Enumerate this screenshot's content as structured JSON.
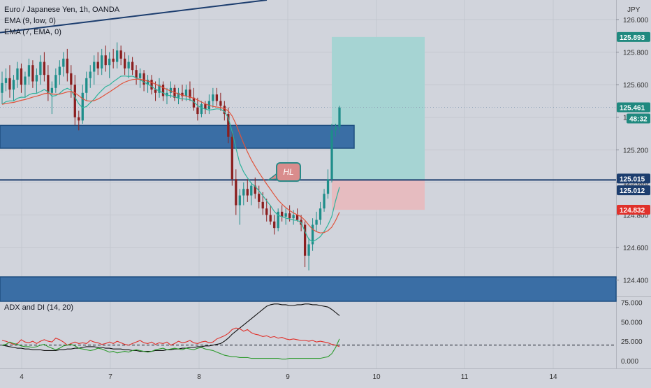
{
  "legend": {
    "symbol": "Euro / Japanese Yen, 1h, OANDA",
    "ema1": "EMA (9, low, 0)",
    "ema2": "EMA (7, EMA, 0)"
  },
  "adx_legend": "ADX and DI (14, 20)",
  "annotation": "HL",
  "colors": {
    "background": "#d1d4dc",
    "zone": "#3a6ea5",
    "zone_border": "#1e4e80",
    "bull": "#1e8e8a",
    "bear": "#8b1f1f",
    "ema_fast": "#2fb39c",
    "ema_slow": "#e0543c",
    "target": "#a6d4d3",
    "stop": "#e6bcc0",
    "adx": "#111111",
    "di_plus": "#2e9b2e",
    "di_minus": "#e0312b"
  },
  "chart_data": [
    {
      "type": "candlestick",
      "title": "Euro / Japanese Yen, 1h, OANDA",
      "currency": "JPY",
      "ylim": [
        124.3,
        126.12
      ],
      "y_ticks": [
        "126.000",
        "125.800",
        "125.600",
        "125.400",
        "125.200",
        "125.000",
        "124.800",
        "124.600",
        "124.400"
      ],
      "x_ticks": [
        "4",
        "7",
        "8",
        "9",
        "10",
        "11",
        "14"
      ],
      "price_labels": [
        {
          "label": "125.893",
          "value": 125.893,
          "kind": "target"
        },
        {
          "label": "125.461",
          "value": 125.461,
          "kind": "last"
        },
        {
          "label": "48:32",
          "value": 125.36,
          "kind": "countdown"
        },
        {
          "label": "125.015",
          "value": 125.015,
          "kind": "level"
        },
        {
          "label": "125.012",
          "value": 125.012,
          "kind": "entry"
        },
        {
          "label": "124.832",
          "value": 124.832,
          "kind": "stop"
        }
      ],
      "horizontal_line": 125.015,
      "zones": [
        {
          "high": 125.35,
          "low": 125.21
        },
        {
          "high": 124.42,
          "low": 124.27
        }
      ],
      "position": {
        "entry": 125.012,
        "target": 125.893,
        "stop": 124.832
      },
      "trendline": {
        "from": 125.92,
        "to": 126.12
      },
      "series": [
        {
          "name": "EMA (9, low, 0)"
        },
        {
          "name": "EMA (7, EMA, 0)"
        }
      ],
      "candles": [
        [
          125.55,
          125.68,
          125.48,
          125.61
        ],
        [
          125.61,
          125.7,
          125.56,
          125.64
        ],
        [
          125.64,
          125.72,
          125.52,
          125.57
        ],
        [
          125.57,
          125.66,
          125.5,
          125.63
        ],
        [
          125.63,
          125.74,
          125.58,
          125.7
        ],
        [
          125.7,
          125.73,
          125.55,
          125.6
        ],
        [
          125.6,
          125.68,
          125.52,
          125.65
        ],
        [
          125.65,
          125.76,
          125.6,
          125.72
        ],
        [
          125.72,
          125.75,
          125.58,
          125.62
        ],
        [
          125.62,
          125.7,
          125.55,
          125.66
        ],
        [
          125.66,
          125.78,
          125.6,
          125.74
        ],
        [
          125.74,
          125.8,
          125.62,
          125.66
        ],
        [
          125.66,
          125.72,
          125.5,
          125.55
        ],
        [
          125.55,
          125.62,
          125.42,
          125.58
        ],
        [
          125.58,
          125.7,
          125.55,
          125.66
        ],
        [
          125.66,
          125.75,
          125.6,
          125.71
        ],
        [
          125.71,
          125.8,
          125.65,
          125.76
        ],
        [
          125.76,
          125.82,
          125.62,
          125.67
        ],
        [
          125.67,
          125.72,
          125.52,
          125.6
        ],
        [
          125.6,
          125.66,
          125.35,
          125.4
        ],
        [
          125.4,
          125.44,
          125.32,
          125.38
        ],
        [
          125.38,
          125.6,
          125.36,
          125.55
        ],
        [
          125.55,
          125.68,
          125.5,
          125.64
        ],
        [
          125.64,
          125.72,
          125.58,
          125.68
        ],
        [
          125.68,
          125.78,
          125.6,
          125.74
        ],
        [
          125.74,
          125.8,
          125.66,
          125.7
        ],
        [
          125.7,
          125.82,
          125.66,
          125.78
        ],
        [
          125.78,
          125.84,
          125.68,
          125.72
        ],
        [
          125.72,
          125.8,
          125.64,
          125.76
        ],
        [
          125.76,
          125.82,
          125.7,
          125.74
        ],
        [
          125.74,
          125.86,
          125.7,
          125.81
        ],
        [
          125.81,
          125.84,
          125.72,
          125.76
        ],
        [
          125.76,
          125.8,
          125.66,
          125.7
        ],
        [
          125.7,
          125.78,
          125.64,
          125.74
        ],
        [
          125.74,
          125.77,
          125.66,
          125.69
        ],
        [
          125.69,
          125.72,
          125.6,
          125.64
        ],
        [
          125.64,
          125.7,
          125.58,
          125.67
        ],
        [
          125.67,
          125.69,
          125.56,
          125.6
        ],
        [
          125.6,
          125.66,
          125.55,
          125.63
        ],
        [
          125.63,
          125.66,
          125.54,
          125.57
        ],
        [
          125.57,
          125.62,
          125.5,
          125.55
        ],
        [
          125.55,
          125.64,
          125.52,
          125.6
        ],
        [
          125.6,
          125.62,
          125.5,
          125.53
        ],
        [
          125.53,
          125.58,
          125.48,
          125.55
        ],
        [
          125.55,
          125.62,
          125.52,
          125.58
        ],
        [
          125.58,
          125.6,
          125.5,
          125.52
        ],
        [
          125.52,
          125.58,
          125.48,
          125.55
        ],
        [
          125.55,
          125.6,
          125.5,
          125.53
        ],
        [
          125.53,
          125.6,
          125.5,
          125.57
        ],
        [
          125.57,
          125.62,
          125.5,
          125.52
        ],
        [
          125.52,
          125.58,
          125.44,
          125.46
        ],
        [
          125.46,
          125.52,
          125.38,
          125.42
        ],
        [
          125.42,
          125.5,
          125.4,
          125.48
        ],
        [
          125.48,
          125.5,
          125.42,
          125.45
        ],
        [
          125.45,
          125.54,
          125.42,
          125.5
        ],
        [
          125.5,
          125.58,
          125.46,
          125.54
        ],
        [
          125.54,
          125.58,
          125.47,
          125.5
        ],
        [
          125.5,
          125.55,
          125.44,
          125.47
        ],
        [
          125.47,
          125.5,
          125.38,
          125.42
        ],
        [
          125.42,
          125.46,
          125.24,
          125.28
        ],
        [
          125.28,
          125.32,
          124.98,
          125.02
        ],
        [
          125.02,
          125.08,
          124.8,
          124.86
        ],
        [
          124.86,
          124.96,
          124.74,
          124.92
        ],
        [
          124.92,
          125.0,
          124.86,
          124.96
        ],
        [
          124.96,
          125.02,
          124.88,
          124.92
        ],
        [
          124.92,
          125.0,
          124.86,
          124.98
        ],
        [
          124.98,
          125.03,
          124.9,
          124.93
        ],
        [
          124.93,
          124.98,
          124.84,
          124.88
        ],
        [
          124.88,
          124.94,
          124.8,
          124.84
        ],
        [
          124.84,
          124.9,
          124.76,
          124.8
        ],
        [
          124.8,
          124.86,
          124.74,
          124.76
        ],
        [
          124.76,
          124.8,
          124.68,
          124.72
        ],
        [
          124.72,
          124.84,
          124.7,
          124.82
        ],
        [
          124.82,
          124.86,
          124.76,
          124.79
        ],
        [
          124.79,
          124.84,
          124.74,
          124.81
        ],
        [
          124.81,
          124.86,
          124.76,
          124.78
        ],
        [
          124.78,
          124.83,
          124.74,
          124.8
        ],
        [
          124.8,
          124.84,
          124.76,
          124.77
        ],
        [
          124.77,
          124.8,
          124.7,
          124.74
        ],
        [
          124.74,
          124.76,
          124.48,
          124.55
        ],
        [
          124.55,
          124.66,
          124.46,
          124.62
        ],
        [
          124.62,
          124.78,
          124.58,
          124.74
        ],
        [
          124.74,
          124.82,
          124.7,
          124.77
        ],
        [
          124.77,
          124.88,
          124.74,
          124.84
        ],
        [
          124.84,
          124.96,
          124.82,
          124.93
        ],
        [
          124.93,
          125.08,
          124.9,
          125.02
        ],
        [
          125.02,
          125.36,
          125.0,
          125.32
        ],
        [
          125.32,
          125.36,
          125.28,
          125.34
        ],
        [
          125.34,
          125.47,
          125.3,
          125.46
        ]
      ]
    },
    {
      "type": "line",
      "title": "ADX and DI (14, 20)",
      "ylim": [
        -10,
        80
      ],
      "y_ticks": [
        "75.000",
        "50.000",
        "25.000",
        "0.000"
      ],
      "threshold": 20,
      "series": [
        {
          "values": [
            20,
            19,
            18,
            17,
            16,
            16,
            15,
            15,
            14,
            14,
            14,
            13,
            13,
            13,
            13,
            14,
            14,
            15,
            15,
            16,
            16,
            17,
            18,
            18,
            18,
            17,
            17,
            16,
            16,
            15,
            15,
            15,
            14,
            14,
            13,
            13,
            12,
            12,
            12,
            12,
            13,
            13,
            13,
            14,
            14,
            15,
            15,
            16,
            16,
            17,
            17,
            18,
            18,
            19,
            19,
            20,
            21,
            22,
            25,
            29,
            34,
            38,
            42,
            46,
            50,
            54,
            58,
            62,
            66,
            70,
            72,
            73,
            73,
            72,
            72,
            71,
            71,
            72,
            72,
            73,
            73,
            72,
            72,
            71,
            70,
            69,
            66,
            62,
            58
          ]
        },
        {
          "values": [
            26,
            25,
            23,
            21,
            22,
            27,
            24,
            23,
            25,
            22,
            25,
            27,
            25,
            24,
            29,
            27,
            24,
            20,
            22,
            24,
            22,
            23,
            22,
            26,
            24,
            23,
            21,
            22,
            24,
            22,
            25,
            23,
            21,
            20,
            22,
            24,
            26,
            23,
            22,
            24,
            21,
            23,
            22,
            24,
            20,
            22,
            25,
            23,
            24,
            26,
            23,
            22,
            24,
            25,
            23,
            24,
            28,
            30,
            32,
            35,
            40,
            42,
            41,
            38,
            40,
            36,
            34,
            33,
            31,
            32,
            30,
            31,
            29,
            30,
            28,
            27,
            28,
            27,
            26,
            26,
            25,
            26,
            24,
            25,
            24,
            23,
            21,
            20,
            18
          ]
        },
        {
          "values": [
            20,
            21,
            24,
            22,
            21,
            19,
            18,
            18,
            17,
            18,
            20,
            21,
            18,
            16,
            14,
            16,
            19,
            20,
            21,
            19,
            16,
            15,
            14,
            13,
            14,
            16,
            15,
            13,
            11,
            12,
            10,
            11,
            12,
            11,
            13,
            14,
            13,
            12,
            11,
            12,
            14,
            15,
            16,
            14,
            15,
            16,
            15,
            14,
            16,
            15,
            14,
            16,
            17,
            15,
            14,
            13,
            11,
            9,
            7,
            6,
            5,
            5,
            4,
            4,
            4,
            3,
            3,
            3,
            3,
            3,
            3,
            3,
            3,
            2,
            2,
            3,
            3,
            3,
            3,
            3,
            3,
            3,
            3,
            3,
            4,
            5,
            9,
            17,
            28
          ]
        }
      ]
    }
  ]
}
